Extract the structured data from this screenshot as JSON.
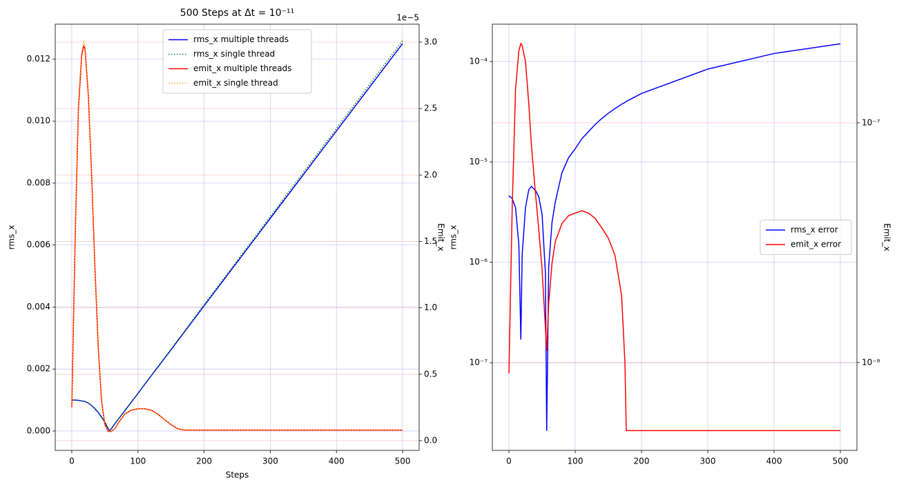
{
  "chart_data": [
    {
      "type": "line",
      "title": "500 Steps at Δt = 10⁻¹¹",
      "xlabel": "Steps",
      "ylabel": "rms_x",
      "y2label": "Emit_x",
      "y2_offset_text": "1e−5",
      "x": [
        0,
        5,
        10,
        15,
        18,
        20,
        25,
        30,
        35,
        40,
        45,
        50,
        55,
        57,
        60,
        65,
        70,
        80,
        90,
        100,
        110,
        120,
        130,
        140,
        150,
        160,
        170,
        175,
        200,
        300,
        400,
        500
      ],
      "series": [
        {
          "name": "rms_x multiple threads",
          "color": "#0000ff",
          "linestyle": "solid",
          "values": [
            0.001,
            0.001,
            0.00099,
            0.00097,
            0.00096,
            0.00095,
            0.0009,
            0.00082,
            0.00072,
            0.0006,
            0.00045,
            0.00028,
            8e-05,
            1e-05,
            8e-05,
            0.00023,
            0.00037,
            0.00065,
            0.00093,
            0.00121,
            0.0015,
            0.00178,
            0.00206,
            0.00234,
            0.00262,
            0.00291,
            0.00319,
            0.00333,
            0.00404,
            0.00686,
            0.00968,
            0.0125
          ]
        },
        {
          "name": "rms_x single thread",
          "color": "#008000",
          "linestyle": "dotted",
          "values": [
            0.001,
            0.001,
            0.00099,
            0.00097,
            0.00096,
            0.00095,
            0.0009,
            0.00082,
            0.00072,
            0.0006,
            0.00045,
            0.00028,
            8e-05,
            1e-05,
            8e-05,
            0.00023,
            0.00037,
            0.00066,
            0.00094,
            0.00122,
            0.00151,
            0.00179,
            0.00208,
            0.00236,
            0.00264,
            0.00293,
            0.00321,
            0.00336,
            0.00408,
            0.00692,
            0.00976,
            0.0126
          ]
        },
        {
          "name": "emit_x multiple threads",
          "color": "#ff0000",
          "linestyle": "solid",
          "axis": "y2",
          "values": [
            0.25,
            1.5,
            2.5,
            2.9,
            2.97,
            2.95,
            2.6,
            2.0,
            1.3,
            0.7,
            0.3,
            0.12,
            0.07,
            0.07,
            0.07,
            0.09,
            0.13,
            0.2,
            0.23,
            0.24,
            0.24,
            0.23,
            0.2,
            0.16,
            0.12,
            0.09,
            0.08,
            0.08,
            0.08,
            0.08,
            0.08,
            0.08
          ]
        },
        {
          "name": "emit_x single thread",
          "color": "#ffa500",
          "linestyle": "dotted",
          "axis": "y2",
          "values": [
            0.25,
            1.52,
            2.53,
            2.93,
            3.0,
            2.97,
            2.6,
            2.0,
            1.3,
            0.7,
            0.3,
            0.12,
            0.07,
            0.07,
            0.07,
            0.09,
            0.13,
            0.2,
            0.23,
            0.24,
            0.24,
            0.23,
            0.2,
            0.16,
            0.12,
            0.09,
            0.08,
            0.08,
            0.08,
            0.08,
            0.08,
            0.08
          ]
        }
      ],
      "xlim": [
        -25,
        525
      ],
      "xticks": [
        0,
        100,
        200,
        300,
        400,
        500
      ],
      "ylim": [
        -0.000625,
        0.013125
      ],
      "yticks": [
        {
          "value": 0,
          "label": "0.000"
        },
        0.002,
        0.004,
        0.006,
        0.008,
        {
          "value": 0.01,
          "label": "0.010"
        },
        0.012
      ],
      "y2lim": [
        -0.073,
        3.135
      ],
      "y2ticks": [
        {
          "value": 0,
          "label": "0.0"
        },
        0.5,
        {
          "value": 1,
          "label": "1.0"
        },
        1.5,
        {
          "value": 2,
          "label": "2.0"
        },
        2.5,
        {
          "value": 3,
          "label": "3.0"
        }
      ],
      "grid": true,
      "legend": "upper center"
    },
    {
      "type": "line",
      "ylabel": "rms_x",
      "y2label": "Emit_x",
      "x": [
        0,
        5,
        10,
        15,
        18,
        20,
        25,
        30,
        34,
        40,
        45,
        50,
        55,
        57,
        60,
        65,
        70,
        80,
        90,
        100,
        110,
        120,
        130,
        140,
        150,
        160,
        170,
        175,
        177,
        200,
        300,
        400,
        500
      ],
      "series": [
        {
          "name": "rms_x error",
          "color": "#0000ff",
          "linestyle": "solid",
          "values": [
            4.6e-06,
            4.3e-06,
            3.5e-06,
            1.5e-06,
            1.7e-07,
            1.2e-06,
            3.5e-06,
            5.3e-06,
            5.7e-06,
            5.2e-06,
            4.5e-06,
            3e-06,
            8e-07,
            2.1e-08,
            9e-07,
            2.5e-06,
            4e-06,
            7.8e-06,
            1.1e-05,
            1.35e-05,
            1.7e-05,
            2e-05,
            2.35e-05,
            2.7e-05,
            3.05e-05,
            3.4e-05,
            3.75e-05,
            3.9e-05,
            4e-05,
            4.8e-05,
            8.4e-05,
            0.00012,
            0.00015
          ]
        },
        {
          "name": "emit_x error",
          "color": "#ff0000",
          "linestyle": "solid",
          "axis": "y2",
          "values": [
            9e-09,
            4.5e-08,
            1.38e-07,
            2e-07,
            2.14e-07,
            2.1e-07,
            1.8e-07,
            1.2e-07,
            8e-08,
            5.1e-08,
            3.6e-08,
            2.45e-08,
            1.4e-08,
            1.12e-08,
            1.76e-08,
            2.6e-08,
            3.2e-08,
            3.8e-08,
            4.1e-08,
            4.2e-08,
            4.3e-08,
            4.2e-08,
            4e-08,
            3.65e-08,
            3.3e-08,
            2.8e-08,
            1.9e-08,
            1e-08,
            5.2e-09,
            5.2e-09,
            5.2e-09,
            5.2e-09,
            5.2e-09
          ]
        }
      ],
      "xlim": [
        -25,
        525
      ],
      "xticks": [
        0,
        100,
        200,
        300,
        400,
        500
      ],
      "ylim": [
        1.34e-08,
        0.000235
      ],
      "ylog": true,
      "yticks": [
        {
          "value": 1e-07,
          "label": "10⁻⁷"
        },
        {
          "value": 1e-06,
          "label": "10⁻⁶"
        },
        {
          "value": 1e-05,
          "label": "10⁻⁵"
        },
        {
          "value": 0.0001,
          "label": "10⁻⁴"
        }
      ],
      "y2lim": [
        4.3e-09,
        2.58e-07
      ],
      "y2log": true,
      "y2ticks": [
        {
          "value": 1e-08,
          "label": "10⁻⁸"
        },
        {
          "value": 1e-07,
          "label": "10⁻⁷"
        }
      ],
      "grid": true,
      "legend": "center right"
    }
  ]
}
